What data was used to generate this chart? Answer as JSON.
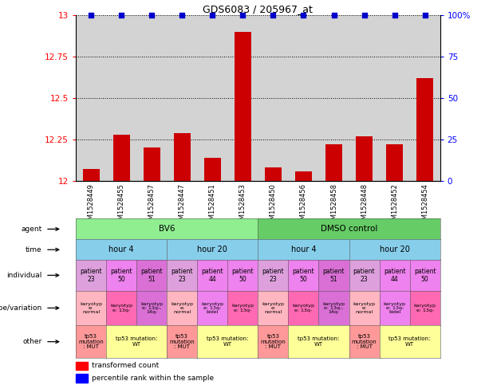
{
  "title": "GDS6083 / 205967_at",
  "samples": [
    "GSM1528449",
    "GSM1528455",
    "GSM1528457",
    "GSM1528447",
    "GSM1528451",
    "GSM1528453",
    "GSM1528450",
    "GSM1528456",
    "GSM1528458",
    "GSM1528448",
    "GSM1528452",
    "GSM1528454"
  ],
  "bar_values": [
    12.07,
    12.28,
    12.2,
    12.29,
    12.14,
    12.9,
    12.08,
    12.06,
    12.22,
    12.27,
    12.22,
    12.62
  ],
  "percentile_values": [
    100,
    100,
    100,
    100,
    100,
    100,
    100,
    100,
    100,
    100,
    100,
    100
  ],
  "ylim_left": [
    12.0,
    13.0
  ],
  "ylim_right": [
    0,
    100
  ],
  "yticks_left": [
    12.0,
    12.25,
    12.5,
    12.75,
    13.0
  ],
  "ytick_labels_left": [
    "12",
    "12.25",
    "12.5",
    "12.75",
    "13"
  ],
  "yticks_right": [
    0,
    25,
    50,
    75,
    100
  ],
  "ytick_labels_right": [
    "0",
    "25",
    "50",
    "75",
    "100%"
  ],
  "bar_color": "#cc0000",
  "percentile_color": "#0000cc",
  "plot_bg_color": "#d3d3d3",
  "agent_row": {
    "label": "agent",
    "groups": [
      {
        "text": "BV6",
        "span": [
          0,
          6
        ],
        "color": "#90ee90"
      },
      {
        "text": "DMSO control",
        "span": [
          6,
          12
        ],
        "color": "#66cc66"
      }
    ]
  },
  "time_row": {
    "label": "time",
    "groups": [
      {
        "text": "hour 4",
        "span": [
          0,
          3
        ],
        "color": "#87ceeb"
      },
      {
        "text": "hour 20",
        "span": [
          3,
          6
        ],
        "color": "#87ceeb"
      },
      {
        "text": "hour 4",
        "span": [
          6,
          9
        ],
        "color": "#87ceeb"
      },
      {
        "text": "hour 20",
        "span": [
          9,
          12
        ],
        "color": "#87ceeb"
      }
    ]
  },
  "individual_row": {
    "label": "individual",
    "cells": [
      {
        "text": "patient\n23",
        "color": "#dda0dd"
      },
      {
        "text": "patient\n50",
        "color": "#ee82ee"
      },
      {
        "text": "patient\n51",
        "color": "#da70d6"
      },
      {
        "text": "patient\n23",
        "color": "#dda0dd"
      },
      {
        "text": "patient\n44",
        "color": "#ee82ee"
      },
      {
        "text": "patient\n50",
        "color": "#ee82ee"
      },
      {
        "text": "patient\n23",
        "color": "#dda0dd"
      },
      {
        "text": "patient\n50",
        "color": "#ee82ee"
      },
      {
        "text": "patient\n51",
        "color": "#da70d6"
      },
      {
        "text": "patient\n23",
        "color": "#dda0dd"
      },
      {
        "text": "patient\n44",
        "color": "#ee82ee"
      },
      {
        "text": "patient\n50",
        "color": "#ee82ee"
      }
    ]
  },
  "genotype_row": {
    "label": "genotype/variation",
    "cells": [
      {
        "text": "karyotyp\ne:\nnormal",
        "color": "#ffb6c1"
      },
      {
        "text": "karyotyp\ne: 13q-",
        "color": "#ff69b4"
      },
      {
        "text": "karyotyp\ne: 13q-,\n14q-",
        "color": "#da70d6"
      },
      {
        "text": "karyotyp\ne:\nnormal",
        "color": "#ffb6c1"
      },
      {
        "text": "karyotyp\ne: 13q-\nbidel",
        "color": "#ee82ee"
      },
      {
        "text": "karyotyp\ne: 13q-",
        "color": "#ff69b4"
      },
      {
        "text": "karyotyp\ne:\nnormal",
        "color": "#ffb6c1"
      },
      {
        "text": "karyotyp\ne: 13q-",
        "color": "#ff69b4"
      },
      {
        "text": "karyotyp\ne: 13q-,\n14q-",
        "color": "#da70d6"
      },
      {
        "text": "karyotyp\ne:\nnormal",
        "color": "#ffb6c1"
      },
      {
        "text": "karyotyp\ne: 13q-\nbidel",
        "color": "#ee82ee"
      },
      {
        "text": "karyotyp\ne: 13q-",
        "color": "#ff69b4"
      }
    ]
  },
  "other_row": {
    "label": "other",
    "groups": [
      {
        "text": "tp53\nmutation\n: MUT",
        "span": [
          0,
          1
        ],
        "color": "#ff9999"
      },
      {
        "text": "tp53 mutation:\nWT",
        "span": [
          1,
          3
        ],
        "color": "#ffff99"
      },
      {
        "text": "tp53\nmutation\n: MUT",
        "span": [
          3,
          4
        ],
        "color": "#ff9999"
      },
      {
        "text": "tp53 mutation:\nWT",
        "span": [
          4,
          6
        ],
        "color": "#ffff99"
      },
      {
        "text": "tp53\nmutation\n: MUT",
        "span": [
          6,
          7
        ],
        "color": "#ff9999"
      },
      {
        "text": "tp53 mutation:\nWT",
        "span": [
          7,
          9
        ],
        "color": "#ffff99"
      },
      {
        "text": "tp53\nmutation\n: MUT",
        "span": [
          9,
          10
        ],
        "color": "#ff9999"
      },
      {
        "text": "tp53 mutation:\nWT",
        "span": [
          10,
          12
        ],
        "color": "#ffff99"
      }
    ]
  }
}
